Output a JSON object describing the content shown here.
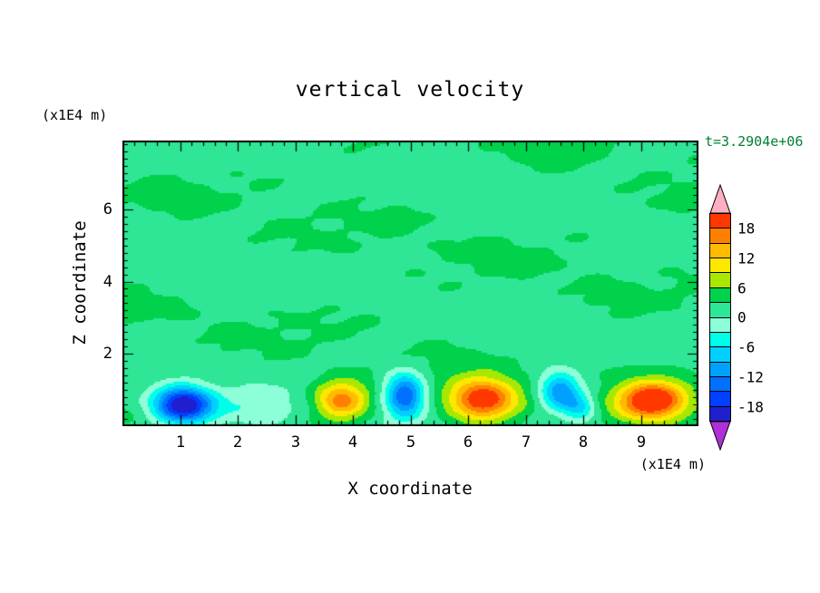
{
  "page": {
    "background": "#ffffff"
  },
  "chart_data": {
    "type": "heatmap",
    "subtype": "filled-contour",
    "title": "vertical velocity",
    "xlabel": "X coordinate",
    "ylabel": "Z coordinate",
    "x_unit": "(x1E4 m)",
    "y_unit": "(x1E4 m)",
    "time_annotation": "t=3.2904e+06",
    "time_annotation_color": "#008033",
    "xlim": [
      0,
      10
    ],
    "ylim": [
      0,
      7.9
    ],
    "x_ticks": [
      "1",
      "2",
      "3",
      "4",
      "5",
      "6",
      "7",
      "8",
      "9"
    ],
    "y_ticks": [
      "2",
      "4",
      "6"
    ],
    "y_tick_values": [
      2,
      4,
      6
    ],
    "x_tick_values": [
      1,
      2,
      3,
      4,
      5,
      6,
      7,
      8,
      9
    ],
    "contour_interval": 3,
    "levels_min": -21,
    "levels_max": 21,
    "grid": false,
    "legend_position": "right-colorbar",
    "colorbar": {
      "labels": [
        "18",
        "12",
        "6",
        "0",
        "-6",
        "-12",
        "-18"
      ],
      "label_values": [
        18,
        12,
        6,
        0,
        -6,
        -12,
        -18
      ],
      "colors_low_to_high": [
        "#1f1fd0",
        "#0040ff",
        "#0070ff",
        "#00a0ff",
        "#00cfff",
        "#00ffe8",
        "#8dffd8",
        "#2ee695",
        "#00d24b",
        "#a8e800",
        "#ffe800",
        "#ffbb00",
        "#ff8000",
        "#ff3800"
      ],
      "below_color": "#b030d8",
      "above_color": "#ffb0c0"
    },
    "field": {
      "description": "Convective vertical-velocity field: weak green background turbulence aloft, alternating strong downdrafts (blue) and updrafts (yellow/orange) plumes near the lower boundary.",
      "background_mean": 2.5,
      "background_noise_amp": 1.5,
      "plumes": [
        {
          "x": 1.05,
          "z": 0.6,
          "sx": 0.5,
          "sz": 0.5,
          "amp": -24
        },
        {
          "x": 2.3,
          "z": 0.45,
          "sx": 0.85,
          "sz": 0.55,
          "amp": -5
        },
        {
          "x": 3.8,
          "z": 0.7,
          "sx": 0.45,
          "sz": 0.5,
          "amp": 15
        },
        {
          "x": 4.9,
          "z": 0.85,
          "sx": 0.34,
          "sz": 0.6,
          "amp": -18
        },
        {
          "x": 6.25,
          "z": 0.75,
          "sx": 0.58,
          "sz": 0.55,
          "amp": 20
        },
        {
          "x": 7.6,
          "z": 0.95,
          "sx": 0.36,
          "sz": 0.5,
          "amp": -15
        },
        {
          "x": 7.95,
          "z": 0.5,
          "sx": 0.3,
          "sz": 0.38,
          "amp": -9
        },
        {
          "x": 9.2,
          "z": 0.7,
          "sx": 0.58,
          "sz": 0.52,
          "amp": 22
        }
      ]
    }
  }
}
